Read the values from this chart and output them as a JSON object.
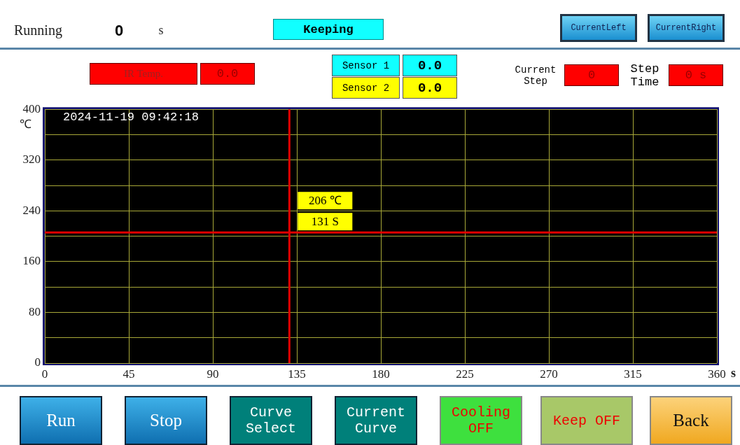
{
  "chart_data": {
    "type": "line",
    "xlabel": "s",
    "ylabel": "℃",
    "xlim": [
      0,
      360
    ],
    "xticks": [
      0,
      45,
      90,
      135,
      180,
      225,
      270,
      315,
      360
    ],
    "ylim": [
      0,
      400
    ],
    "yticks": [
      0,
      {
        "value": 40,
        "label": null
      },
      80,
      {
        "value": 120,
        "label": null
      },
      160,
      {
        "value": 200,
        "label": null
      },
      240,
      {
        "value": 280,
        "label": null
      },
      320,
      {
        "value": 360,
        "label": null
      },
      400
    ],
    "grid": true,
    "legend": false,
    "ref_lines": [
      {
        "axis": "y",
        "value": 206,
        "label": "206 ℃",
        "color": "#e00000"
      },
      {
        "axis": "x",
        "value": 131,
        "label": "131 S",
        "color": "#e00000"
      }
    ],
    "annotations": [
      "Running",
      "0",
      "s",
      "Keeping",
      "CurrentLeft",
      "CurrentRight",
      "IR Temp.",
      "0.0",
      "Sensor 1",
      "0.0",
      "Sensor 2",
      "0.0",
      "Current Step",
      "0",
      "Step Time",
      "0 s",
      "2024-11-19 09:42:18",
      "Run",
      "Stop",
      "Curve Select",
      "Current Curve",
      "Cooling OFF",
      "Keep OFF",
      "Back"
    ]
  }
}
